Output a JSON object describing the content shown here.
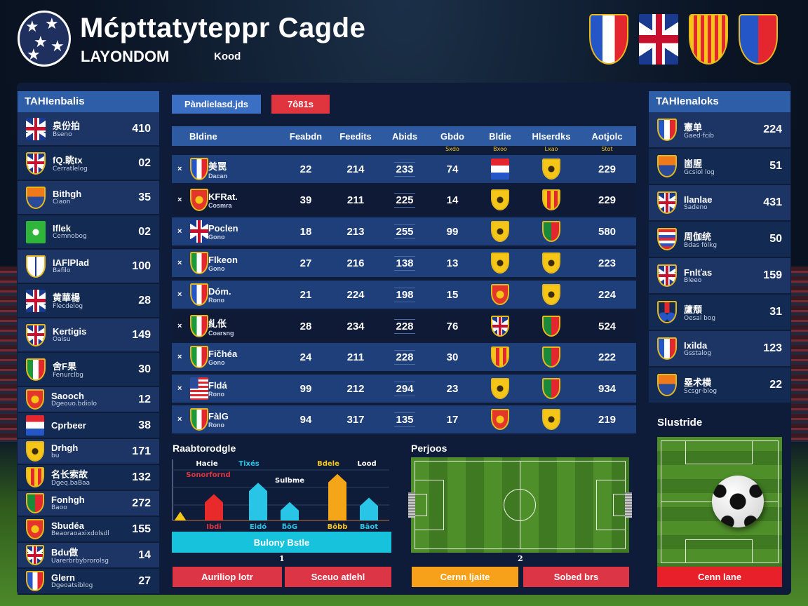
{
  "header": {
    "title": "Mćpttatyteppr Cagde",
    "subtitle": "LAYONDOM",
    "tag": "Kood",
    "crests": [
      "fr",
      "uk",
      "catalan",
      "mixed"
    ]
  },
  "left_sidebar": {
    "title": "TAHIenbalis",
    "items": [
      {
        "name": "泉份拍",
        "sub": "Bseno",
        "value": "410",
        "crest": "uk"
      },
      {
        "name": "fQ.眺tx",
        "sub": "Cerratlelog",
        "value": "02",
        "crest": "ukshield"
      },
      {
        "name": "Bithgh",
        "sub": "Ciaon",
        "value": "35",
        "crest": "orange"
      },
      {
        "name": "Iflek",
        "sub": "Cemnobog",
        "value": "02",
        "crest": "green"
      },
      {
        "name": "IAFlPlad",
        "sub": "Bafilo",
        "value": "100",
        "crest": "white"
      },
      {
        "name": "黄華楊",
        "sub": "Flecdelog",
        "value": "28",
        "crest": "uk"
      },
      {
        "name": "Kertigis",
        "sub": "Oaisu",
        "value": "149",
        "crest": "ukshield"
      },
      {
        "name": "舍F果",
        "sub": "Fenurclbg",
        "value": "30",
        "crest": "it"
      },
      {
        "name": "Saooch",
        "sub": "Dgeouo.bdiolo",
        "value": "12",
        "crest": "red"
      },
      {
        "name": "Cprbeer",
        "sub": "",
        "value": "38",
        "crest": "paraguay"
      },
      {
        "name": "Drhgh",
        "sub": "bu",
        "value": "171",
        "crest": "yellow"
      },
      {
        "name": "名长索故",
        "sub": "Dgeq.baBaa",
        "value": "132",
        "crest": "catalan"
      },
      {
        "name": "Fonhgh",
        "sub": "Baoo",
        "value": "272",
        "crest": "portugal"
      },
      {
        "name": "Sbudéa",
        "sub": "Beaoraoaxixdolsdl",
        "value": "155",
        "crest": "red"
      },
      {
        "name": "Bdu做",
        "sub": "Uarerbrbybrorolsg",
        "value": "14",
        "crest": "ukshield"
      },
      {
        "name": "Glern",
        "sub": "Dgeoatsiblog",
        "value": "27",
        "crest": "fr"
      }
    ]
  },
  "tabs": [
    {
      "label": "Pàndielasd.jds",
      "color": "#3a6fc4"
    },
    {
      "label": "7ô81s",
      "color": "#e0353f"
    }
  ],
  "table": {
    "headers": [
      "Bldine",
      "Feabdn",
      "Feedits",
      "Abids",
      "Gbdo",
      "Bldie",
      "Hlserdks",
      "Aotjolc"
    ],
    "subheaders": [
      "",
      "",
      "",
      "",
      "Sxdo",
      "Bxoo",
      "Lxao",
      "Stot"
    ],
    "rows": [
      {
        "marker": "×",
        "name": "美罠",
        "sub": "Dacan",
        "crest": "fr",
        "c1": "22",
        "c2": "214",
        "c3": "233",
        "c4": "74",
        "crestA": "paraguay",
        "crestB": "yellow",
        "last": "229"
      },
      {
        "marker": "×",
        "name": "KFRat.",
        "sub": "Cosmra",
        "crest": "red",
        "c1": "39",
        "c2": "211",
        "c3": "225",
        "c4": "14",
        "crestA": "yellow",
        "crestB": "catalan",
        "last": "229"
      },
      {
        "marker": "×",
        "name": "Poclen",
        "sub": "Gono",
        "crest": "uk",
        "c1": "18",
        "c2": "213",
        "c3": "255",
        "c4": "99",
        "crestA": "yellow",
        "crestB": "portugal",
        "last": "580"
      },
      {
        "marker": "×",
        "name": "Flkeon",
        "sub": "Gono",
        "crest": "it",
        "c1": "27",
        "c2": "216",
        "c3": "138",
        "c4": "13",
        "crestA": "yellow",
        "crestB": "yellow",
        "last": "223"
      },
      {
        "marker": "×",
        "name": "Dóm.",
        "sub": "Rono",
        "crest": "fr",
        "c1": "21",
        "c2": "224",
        "c3": "198",
        "c4": "15",
        "crestA": "red",
        "crestB": "yellow",
        "last": "224"
      },
      {
        "marker": "×",
        "name": "糺伥",
        "sub": "Coarsng",
        "crest": "it",
        "c1": "28",
        "c2": "234",
        "c3": "228",
        "c4": "76",
        "crestA": "ukshield",
        "crestB": "portugal",
        "last": "524"
      },
      {
        "marker": "×",
        "name": "Fičhéa",
        "sub": "Gono",
        "crest": "it",
        "c1": "24",
        "c2": "211",
        "c3": "228",
        "c4": "30",
        "crestA": "catalan",
        "crestB": "portugal",
        "last": "222"
      },
      {
        "marker": "×",
        "name": "Fldá",
        "sub": "Rono",
        "crest": "usa",
        "c1": "99",
        "c2": "212",
        "c3": "294",
        "c4": "23",
        "crestA": "yellow",
        "crestB": "portugal",
        "last": "934"
      },
      {
        "marker": "×",
        "name": "FàlG",
        "sub": "Rono",
        "crest": "it",
        "c1": "94",
        "c2": "317",
        "c3": "135",
        "c4": "17",
        "crestA": "red",
        "crestB": "yellow",
        "last": "219"
      }
    ]
  },
  "stats_widget": {
    "title": "Raabtorodgle",
    "top_labels": [
      {
        "text": "Hacie",
        "color": "#ffffff"
      },
      {
        "text": "Tixés",
        "color": "#29c5e6"
      },
      {
        "text": "Sonorfornd",
        "color": "#e0353f"
      },
      {
        "text": "Sulbme",
        "color": "#ffffff"
      },
      {
        "text": "Bdele",
        "color": "#f5c518"
      },
      {
        "text": "Lood",
        "color": "#ffffff"
      }
    ],
    "bars": [
      {
        "value": 10,
        "color": "#f5c518",
        "label": ""
      },
      {
        "value": 30,
        "color": "#e82a2a",
        "label": "Ibdi",
        "label_color": "#e0353f"
      },
      {
        "value": 43,
        "color": "#29c5e6",
        "label": "Eidó",
        "label_color": "#29c5e6"
      },
      {
        "value": 21,
        "color": "#29c5e6",
        "label": "ƃōG",
        "label_color": "#29c5e6"
      },
      {
        "value": 53,
        "color": "#f5a518",
        "label": "Bōbb",
        "label_color": "#f5c518"
      },
      {
        "value": 26,
        "color": "#29c5e6",
        "label": "Bāot",
        "label_color": "#29c5e6"
      }
    ],
    "action_label": "Bulony Bstle",
    "page": "1",
    "buttons": [
      "Auriliop lotr",
      "Sceuo atlehl"
    ]
  },
  "pitch_widget": {
    "title": "Perjoos",
    "page": "2",
    "buttons": [
      "Cernn ljaite",
      "Sobed brs"
    ]
  },
  "right_sidebar": {
    "title": "TAHIenaloks",
    "items": [
      {
        "name": "憲单",
        "sub": "Gaed·fcib",
        "value": "224",
        "crest": "fr"
      },
      {
        "name": "崮腥",
        "sub": "Gcsiol log",
        "value": "51",
        "crest": "orange"
      },
      {
        "name": "Ilanlae",
        "sub": "Sadeno",
        "value": "431",
        "crest": "ukshield"
      },
      {
        "name": "周伽统",
        "sub": "Bdas fólkg",
        "value": "50",
        "crest": "stripes"
      },
      {
        "name": "Fnlťas",
        "sub": "Bleeo",
        "value": "159",
        "crest": "ukshield"
      },
      {
        "name": "蘆頽",
        "sub": "Oesai bog",
        "value": "31",
        "crest": "rings"
      },
      {
        "name": "Ixilda",
        "sub": "Gsstalog",
        "value": "123",
        "crest": "fr"
      },
      {
        "name": "塁术横",
        "sub": "Scsgr·blog",
        "value": "22",
        "crest": "orange"
      }
    ],
    "section_title": "Slustride",
    "button": "Cenn lane"
  },
  "colors": {
    "panel": "#0e1c3a",
    "header_blue": "#2f5ea8",
    "row_blue": "#1e3f7a",
    "row_dark": "#0e1a36",
    "red": "#dc3545",
    "orange": "#f7a01a",
    "cyan": "#17c3dc"
  }
}
